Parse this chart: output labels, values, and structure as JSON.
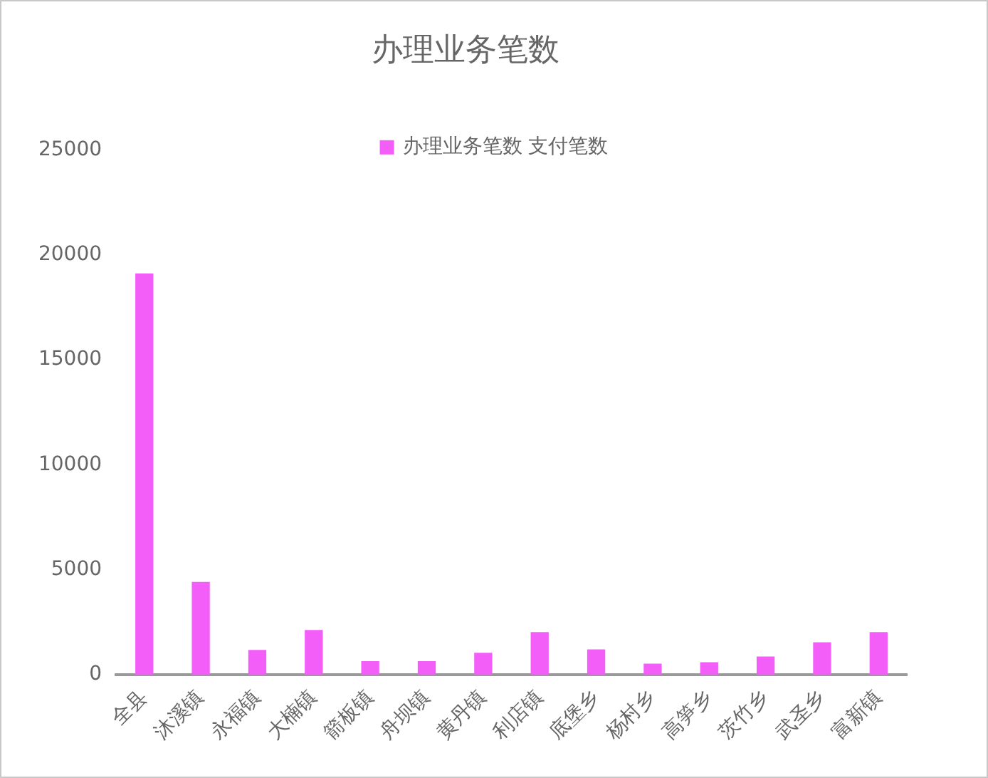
{
  "chart_data": {
    "type": "bar",
    "title": "办理业务笔数",
    "categories": [
      "全县",
      "沐溪镇",
      "永福镇",
      "大楠镇",
      "箭板镇",
      "舟坝镇",
      "黄丹镇",
      "利店镇",
      "底堡乡",
      "杨村乡",
      "高笋乡",
      "茨竹乡",
      "武圣乡",
      "富新镇"
    ],
    "series": [
      {
        "name": "办理业务笔数 支付笔数",
        "color": "#f35ef8",
        "values": [
          19100,
          4400,
          1150,
          2100,
          620,
          620,
          1020,
          2000,
          1180,
          500,
          570,
          840,
          1520,
          2000
        ]
      }
    ],
    "ylim": [
      0,
      25000
    ],
    "yticks": [
      0,
      5000,
      10000,
      15000,
      20000,
      25000
    ],
    "legend": "top"
  }
}
